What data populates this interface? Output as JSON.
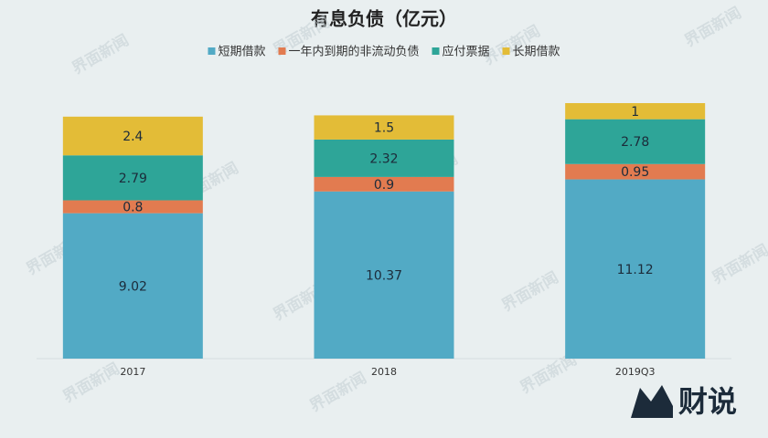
{
  "chart_data": {
    "type": "stacked-bar",
    "title": "有息负债（亿元）",
    "categories": [
      "2017",
      "2018",
      "2019Q3"
    ],
    "series": [
      {
        "name": "短期借款",
        "color": "#52aac5",
        "values": [
          9.02,
          10.37,
          11.12
        ]
      },
      {
        "name": "一年内到期的非流动负债",
        "color": "#e27b50",
        "values": [
          0.8,
          0.9,
          0.95
        ]
      },
      {
        "name": "应付票据",
        "color": "#2ea598",
        "values": [
          2.79,
          2.32,
          2.78
        ]
      },
      {
        "name": "长期借款",
        "color": "#e3bc37",
        "values": [
          2.4,
          1.5,
          1
        ]
      }
    ]
  },
  "watermark": "界面新闻",
  "logo": "财说"
}
